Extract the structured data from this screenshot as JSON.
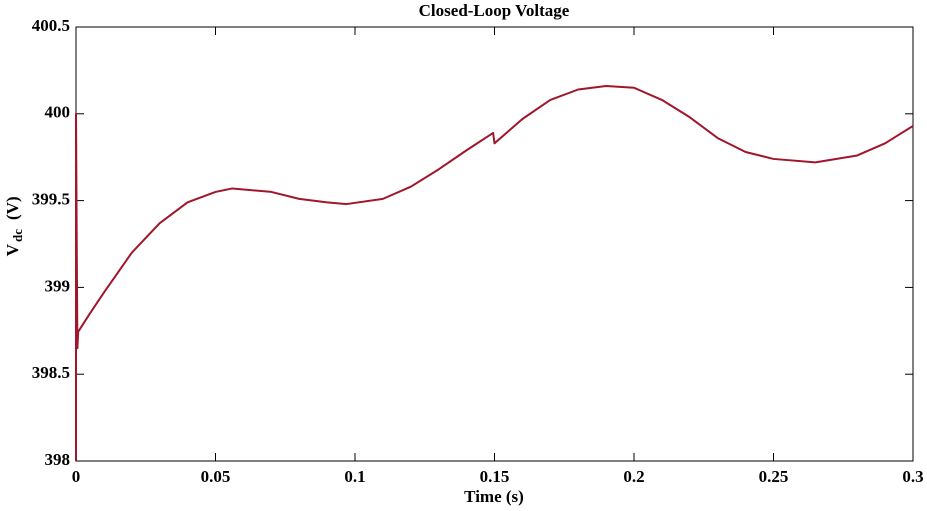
{
  "chart_data": {
    "type": "line",
    "title": "Closed-Loop Voltage",
    "xlabel": "Time (s)",
    "ylabel": {
      "main": "V",
      "sub": "dc",
      "unit": "(V)"
    },
    "xlim": [
      0,
      0.3
    ],
    "ylim": [
      398,
      400.5
    ],
    "xticks": [
      0,
      0.05,
      0.1,
      0.15,
      0.2,
      0.25,
      0.3
    ],
    "yticks": [
      398,
      398.5,
      399,
      399.5,
      400,
      400.5
    ],
    "grid": false,
    "series": [
      {
        "color": "#a0162a",
        "x": [
          0,
          0,
          0.0003,
          0.0005,
          0.0008,
          0.001,
          0.005,
          0.01,
          0.02,
          0.03,
          0.04,
          0.05,
          0.056,
          0.07,
          0.08,
          0.09,
          0.097,
          0.11,
          0.12,
          0.13,
          0.14,
          0.1495,
          0.15,
          0.16,
          0.17,
          0.18,
          0.19,
          0.2,
          0.21,
          0.22,
          0.23,
          0.24,
          0.25,
          0.265,
          0.28,
          0.29,
          0.3
        ],
        "values": [
          398,
          400,
          399.15,
          398.65,
          398.75,
          398.75,
          398.85,
          398.97,
          399.2,
          399.37,
          399.49,
          399.55,
          399.57,
          399.55,
          399.51,
          399.49,
          399.48,
          399.51,
          399.58,
          399.68,
          399.79,
          399.89,
          399.83,
          399.97,
          400.08,
          400.14,
          400.16,
          400.15,
          400.08,
          399.98,
          399.86,
          399.78,
          399.74,
          399.72,
          399.76,
          399.83,
          399.93
        ]
      }
    ]
  }
}
